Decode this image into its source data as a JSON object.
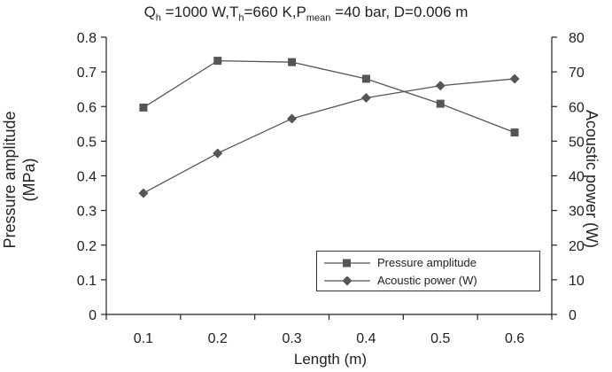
{
  "title": {
    "q": "Q",
    "q_sub": "h",
    "q_rest": " =1000 W,T",
    "t_sub": "h",
    "t_rest": "=660 K,P",
    "p_sub": "mean",
    "p_rest": " =40 bar, D=0.006 m"
  },
  "colors": {
    "series": "#555555",
    "axis": "#222222"
  },
  "chart_data": {
    "type": "line",
    "x": [
      0.1,
      0.2,
      0.3,
      0.4,
      0.5,
      0.6
    ],
    "x_tick_labels": [
      "0.1",
      "0.2",
      "0.3",
      "0.4",
      "0.5",
      "0.6"
    ],
    "xlim": [
      0.05,
      0.65
    ],
    "xlabel": "Length (m)",
    "ylabel_left_line1": "Pressure amplitude",
    "ylabel_left_line2": "(MPa)",
    "ylabel_right": "Acoustic power (W)",
    "ylim_left": [
      0,
      0.8
    ],
    "ylim_right": [
      0,
      80
    ],
    "y_left_ticks": [
      "0",
      "0.1",
      "0.2",
      "0.3",
      "0.4",
      "0.5",
      "0.6",
      "0.7",
      "0.8"
    ],
    "y_right_ticks": [
      "0",
      "10",
      "20",
      "30",
      "40",
      "50",
      "60",
      "70",
      "80"
    ],
    "grid": false,
    "legend_position": "bottom-right",
    "series": [
      {
        "name": "Pressure amplitude",
        "axis": "left",
        "marker": "square",
        "values": [
          0.597,
          0.732,
          0.728,
          0.68,
          0.608,
          0.525
        ]
      },
      {
        "name": "Acoustic power (W)",
        "axis": "right",
        "marker": "diamond",
        "values": [
          35,
          46.5,
          56.5,
          62.5,
          66,
          68
        ]
      }
    ]
  }
}
